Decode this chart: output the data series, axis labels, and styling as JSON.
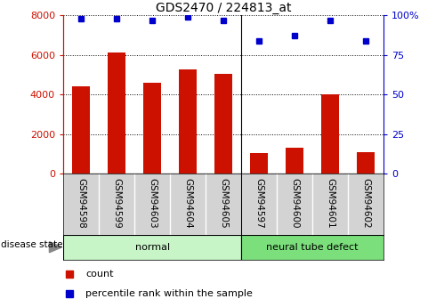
{
  "title": "GDS2470 / 224813_at",
  "samples": [
    "GSM94598",
    "GSM94599",
    "GSM94603",
    "GSM94604",
    "GSM94605",
    "GSM94597",
    "GSM94600",
    "GSM94601",
    "GSM94602"
  ],
  "counts": [
    4400,
    6100,
    4600,
    5250,
    5050,
    1050,
    1300,
    4000,
    1070
  ],
  "percentiles": [
    98,
    98,
    97,
    99,
    97,
    84,
    87,
    97,
    84
  ],
  "groups": [
    {
      "label": "normal",
      "start": 0,
      "end": 5,
      "color": "#c8f5c8"
    },
    {
      "label": "neural tube defect",
      "start": 5,
      "end": 9,
      "color": "#7be07b"
    }
  ],
  "bar_color": "#cc1100",
  "marker_color": "#0000cc",
  "left_yaxis_color": "#cc1100",
  "right_yaxis_color": "#0000cc",
  "ylim_left": [
    0,
    8000
  ],
  "ylim_right": [
    0,
    100
  ],
  "yticks_left": [
    0,
    2000,
    4000,
    6000,
    8000
  ],
  "yticks_right": [
    0,
    25,
    50,
    75,
    100
  ],
  "ytick_labels_right": [
    "0",
    "25",
    "50",
    "75",
    "100%"
  ],
  "grid_color": "black",
  "bar_width": 0.5,
  "legend_count_label": "count",
  "legend_pct_label": "percentile rank within the sample",
  "disease_state_label": "disease state",
  "tick_label_area_color": "#d3d3d3",
  "normal_group_color": "#c8f5c8",
  "defect_group_color": "#7be07b"
}
